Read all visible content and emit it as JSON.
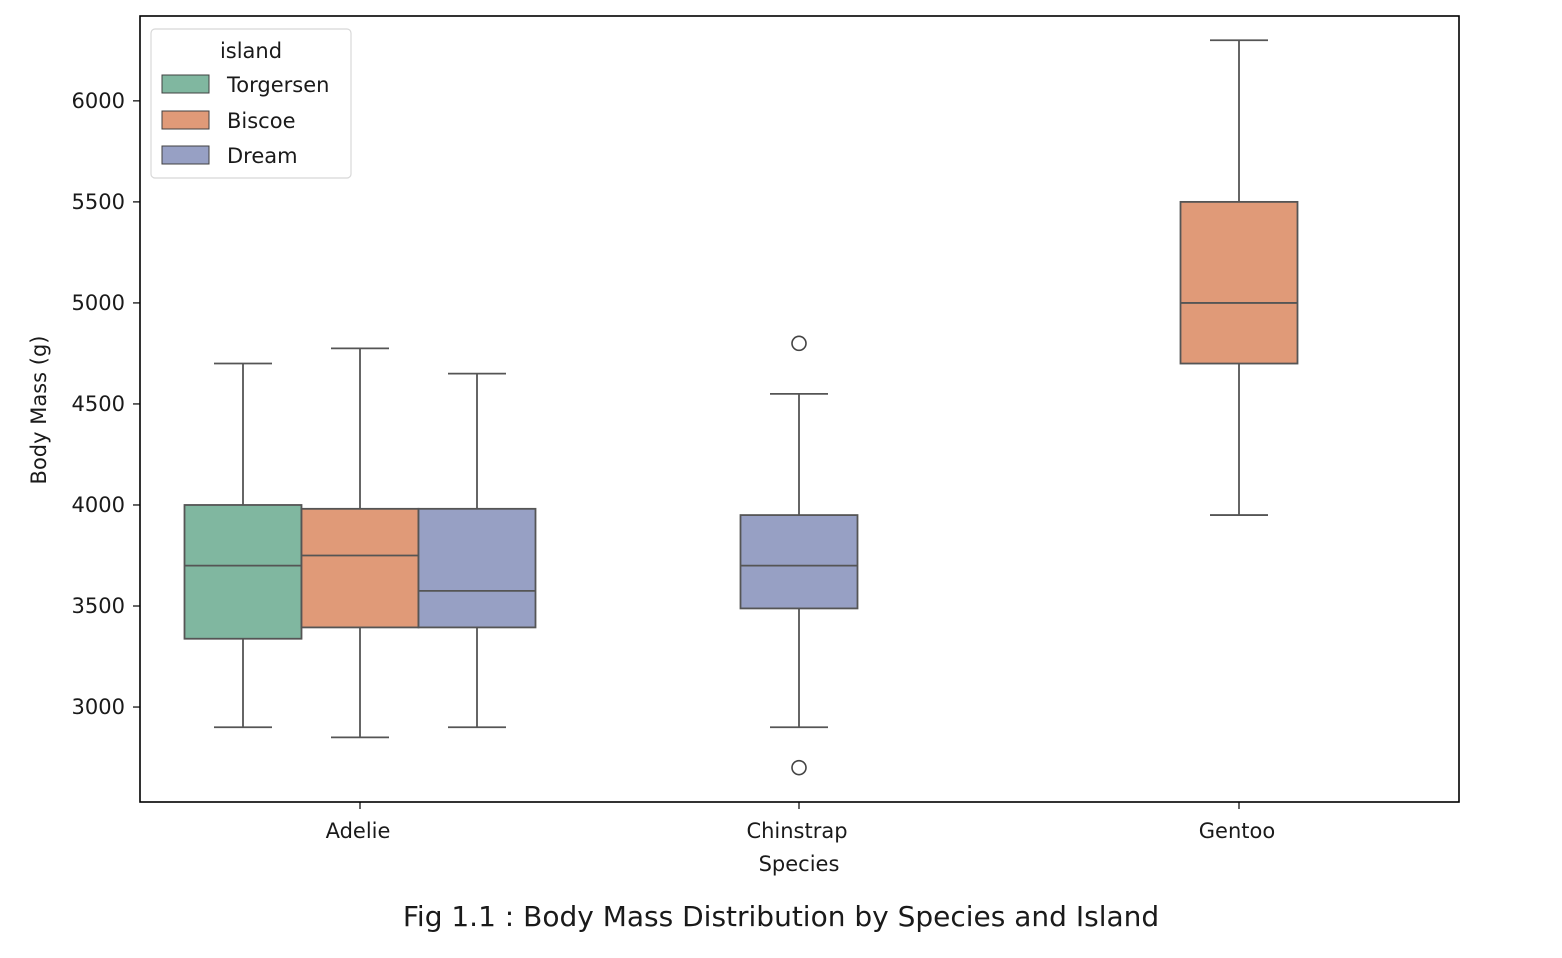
{
  "caption": "Fig 1.1 : Body Mass Distribution by Species and Island",
  "chart_data": {
    "type": "box",
    "xlabel": "Species",
    "ylabel": "Body Mass (g)",
    "categories": [
      "Adelie",
      "Chinstrap",
      "Gentoo"
    ],
    "ylim": [
      2530,
      6420
    ],
    "yticks": [
      3000,
      3500,
      4000,
      4500,
      5000,
      5500,
      6000
    ],
    "legend": {
      "title": "island",
      "position": "upper-left"
    },
    "series": [
      {
        "name": "Torgersen",
        "color": "#80b7a0"
      },
      {
        "name": "Biscoe",
        "color": "#e09a78"
      },
      {
        "name": "Dream",
        "color": "#97a0c4"
      }
    ],
    "boxes": [
      {
        "category": "Adelie",
        "series": "Torgersen",
        "whisker_low": 2900,
        "q1": 3338,
        "median": 3700,
        "q3": 4000,
        "whisker_high": 4700,
        "outliers": []
      },
      {
        "category": "Adelie",
        "series": "Biscoe",
        "whisker_low": 2850,
        "q1": 3394,
        "median": 3750,
        "q3": 3981,
        "whisker_high": 4775,
        "outliers": []
      },
      {
        "category": "Adelie",
        "series": "Dream",
        "whisker_low": 2900,
        "q1": 3394,
        "median": 3575,
        "q3": 3981,
        "whisker_high": 4650,
        "outliers": []
      },
      {
        "category": "Chinstrap",
        "series": "Dream",
        "whisker_low": 2900,
        "q1": 3488,
        "median": 3700,
        "q3": 3950,
        "whisker_high": 4550,
        "outliers": [
          4800,
          2700
        ]
      },
      {
        "category": "Gentoo",
        "series": "Biscoe",
        "whisker_low": 3950,
        "q1": 4700,
        "median": 5000,
        "q3": 5500,
        "whisker_high": 6300,
        "outliers": []
      }
    ]
  }
}
